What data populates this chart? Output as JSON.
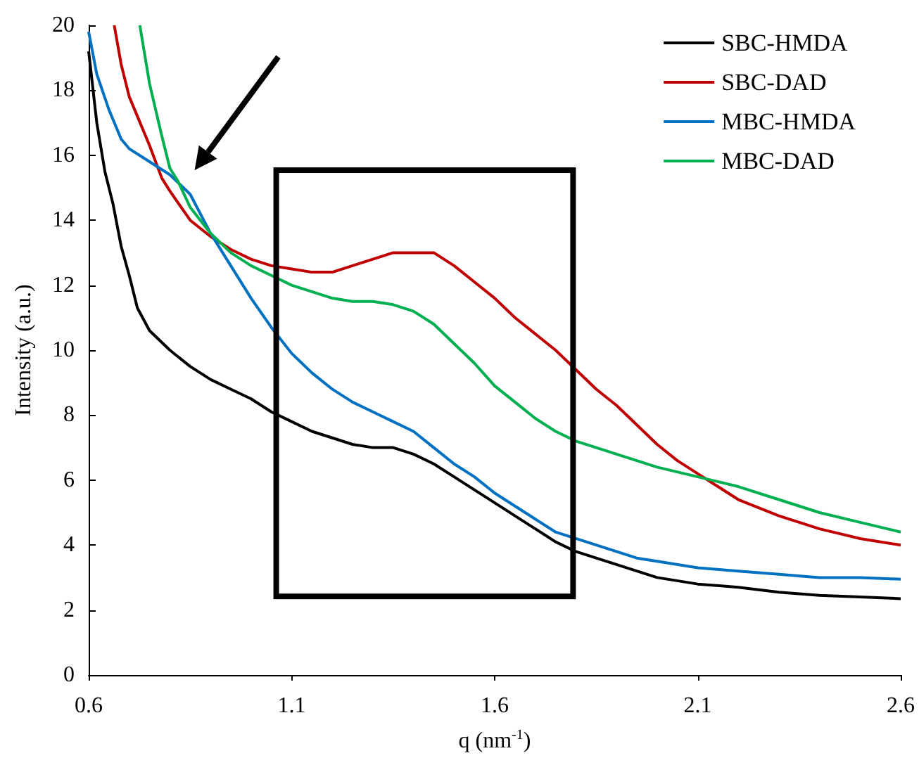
{
  "chart_data": {
    "type": "line",
    "xlabel": "q (nm$^{-1}$)",
    "ylabel": "Intensity (a.u.)",
    "xlim": [
      0.6,
      2.6
    ],
    "xticks": [
      0.6,
      1.1,
      1.6,
      2.1,
      2.6
    ],
    "ylim": [
      0,
      20
    ],
    "yticks": [
      0,
      2,
      4,
      6,
      8,
      10,
      12,
      14,
      16,
      18,
      20
    ],
    "grid": false,
    "legend": "top right",
    "marker": "none",
    "line_style": "solid",
    "series": [
      {
        "name": "SBC-HMDA",
        "color": "#000000",
        "x": [
          0.6,
          0.62,
          0.64,
          0.66,
          0.68,
          0.7,
          0.72,
          0.75,
          0.8,
          0.85,
          0.9,
          0.95,
          1.0,
          1.05,
          1.1,
          1.15,
          1.2,
          1.25,
          1.3,
          1.35,
          1.4,
          1.45,
          1.5,
          1.55,
          1.6,
          1.65,
          1.7,
          1.75,
          1.8,
          1.85,
          1.9,
          1.95,
          2.0,
          2.1,
          2.2,
          2.3,
          2.4,
          2.5,
          2.6
        ],
        "values": [
          19.2,
          17,
          15.5,
          14.5,
          13.2,
          12.3,
          11.3,
          10.6,
          10.0,
          9.5,
          9.1,
          8.8,
          8.5,
          8.1,
          7.8,
          7.5,
          7.3,
          7.1,
          7.0,
          7.0,
          6.8,
          6.5,
          6.1,
          5.7,
          5.3,
          4.9,
          4.5,
          4.1,
          3.8,
          3.6,
          3.4,
          3.2,
          3.0,
          2.8,
          2.7,
          2.55,
          2.45,
          2.4,
          2.35
        ]
      },
      {
        "name": "SBC-DAD",
        "color": "#c00000",
        "x": [
          0.663,
          0.68,
          0.7,
          0.72,
          0.75,
          0.78,
          0.8,
          0.85,
          0.9,
          0.95,
          1.0,
          1.05,
          1.1,
          1.15,
          1.2,
          1.25,
          1.3,
          1.35,
          1.4,
          1.45,
          1.5,
          1.55,
          1.6,
          1.65,
          1.7,
          1.75,
          1.8,
          1.85,
          1.9,
          1.95,
          2.0,
          2.05,
          2.1,
          2.15,
          2.2,
          2.3,
          2.4,
          2.5,
          2.6
        ],
        "values": [
          20,
          18.8,
          17.8,
          17.2,
          16.3,
          15.3,
          14.9,
          14.0,
          13.5,
          13.1,
          12.8,
          12.6,
          12.5,
          12.4,
          12.4,
          12.6,
          12.8,
          13.0,
          13.0,
          13.0,
          12.6,
          12.1,
          11.6,
          11.0,
          10.5,
          10.0,
          9.4,
          8.8,
          8.3,
          7.7,
          7.1,
          6.6,
          6.2,
          5.8,
          5.4,
          4.9,
          4.5,
          4.2,
          4.0
        ]
      },
      {
        "name": "MBC-HMDA",
        "color": "#0070c0",
        "x": [
          0.6,
          0.62,
          0.65,
          0.68,
          0.7,
          0.75,
          0.8,
          0.85,
          0.9,
          0.95,
          1.0,
          1.05,
          1.1,
          1.15,
          1.2,
          1.25,
          1.3,
          1.35,
          1.4,
          1.45,
          1.5,
          1.55,
          1.6,
          1.65,
          1.7,
          1.75,
          1.8,
          1.85,
          1.9,
          1.95,
          2.0,
          2.1,
          2.2,
          2.3,
          2.4,
          2.5,
          2.6
        ],
        "values": [
          19.8,
          18.5,
          17.4,
          16.5,
          16.2,
          15.8,
          15.4,
          14.8,
          13.6,
          12.6,
          11.6,
          10.7,
          9.9,
          9.3,
          8.8,
          8.4,
          8.1,
          7.8,
          7.5,
          7.0,
          6.5,
          6.1,
          5.6,
          5.2,
          4.8,
          4.4,
          4.2,
          4.0,
          3.8,
          3.6,
          3.5,
          3.3,
          3.2,
          3.1,
          3.0,
          3.0,
          2.95
        ]
      },
      {
        "name": "MBC-DAD",
        "color": "#00b050",
        "x": [
          0.726,
          0.75,
          0.78,
          0.8,
          0.82,
          0.85,
          0.9,
          0.95,
          1.0,
          1.05,
          1.1,
          1.15,
          1.2,
          1.25,
          1.3,
          1.35,
          1.4,
          1.45,
          1.5,
          1.55,
          1.6,
          1.65,
          1.7,
          1.75,
          1.8,
          1.85,
          1.9,
          1.95,
          2.0,
          2.1,
          2.2,
          2.3,
          2.4,
          2.5,
          2.6
        ],
        "values": [
          20,
          18.2,
          16.6,
          15.6,
          15.2,
          14.4,
          13.6,
          13.0,
          12.6,
          12.3,
          12.0,
          11.8,
          11.6,
          11.5,
          11.5,
          11.4,
          11.2,
          10.8,
          10.2,
          9.6,
          8.9,
          8.4,
          7.9,
          7.5,
          7.2,
          7.0,
          6.8,
          6.6,
          6.4,
          6.1,
          5.8,
          5.4,
          5.0,
          4.7,
          4.4
        ]
      }
    ]
  }
}
